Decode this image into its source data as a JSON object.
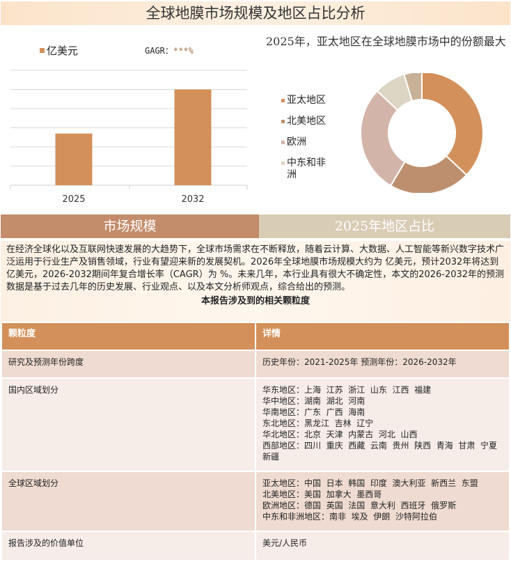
{
  "title": "全球地膜市场规模及地区占比分析",
  "bar_legend": "亿美元",
  "cagr_label": "GAGR：",
  "cagr_value": "***%",
  "pie_title": "2025年，亚太地区在全球地膜市场中的份额最大",
  "colors": {
    "accent": "#d4905a",
    "north_america": "#be8f6e",
    "europe": "#d3b4a8",
    "mea": "#ddd5c4",
    "other": "#c8b196"
  },
  "chart_data": [
    {
      "type": "bar",
      "categories": [
        "2025",
        "2032"
      ],
      "values": [
        2.7,
        5.0
      ],
      "ylim": [
        0,
        6
      ],
      "grid": true,
      "series": [
        {
          "name": "亿美元",
          "values": [
            2.7,
            5.0
          ]
        }
      ]
    },
    {
      "type": "pie",
      "donut": true,
      "labels": [
        "亚太地区",
        "北美地区",
        "欧洲",
        "中东和非洲",
        ""
      ],
      "values": [
        37,
        21.5,
        28.5,
        8.3,
        4.7
      ],
      "colors": [
        "#d4905a",
        "#be8f6e",
        "#d3b4a8",
        "#ddd5c4",
        "#c8b196"
      ],
      "legend": "left"
    }
  ],
  "sections": {
    "left": "市场规模",
    "right": "2025年地区占比"
  },
  "paragraph": "在经济全球化以及互联网快速发展的大趋势下，全球市场需求在不断释放，随着云计算、大数据、人工智能等新兴数字技术广泛运用于行业生产及销售领域，行业有望迎来新的发展契机。2026年全球地膜市场规模大约为 亿美元，预计2032年将达到 亿美元，2026-2032期间年复合增长率（CAGR）为 %。未来几年，本行业具有很大不确定性，本文的2026-2032年的预测数据是基于过去几年的历史发展、行业观点、以及本文分析师观点，综合给出的预测。",
  "table": {
    "caption": "本报告涉及到的相关颗粒度",
    "headers": [
      "颗粒度",
      "详情"
    ],
    "rows": [
      {
        "k": "研究及预测年份跨度",
        "v": [
          "历史年份：2021-2025年 预测年份：2026-2032年"
        ]
      },
      {
        "k": "国内区域划分",
        "v": [
          "华东地区：上海  江苏  浙江  山东  江西  福建",
          "华中地区：湖南  湖北  河南",
          "华南地区：广东  广西  海南",
          "东北地区：黑龙江  吉林  辽宁",
          "华北地区：北京  天津  内蒙古  河北  山西",
          "西部地区：四川  重庆  西藏  云南  贵州  陕西  青海  甘肃  宁夏  新疆"
        ]
      },
      {
        "k": "全球区域划分",
        "v": [
          "亚太地区：中国  日本  韩国  印度  澳大利亚  新西兰  东盟",
          "北美地区：美国  加拿大  墨西哥",
          "欧洲地区：德国  英国  法国  意大利  西班牙  俄罗斯",
          "中东和非洲地区：南非  埃及  伊朗  沙特阿拉伯"
        ]
      },
      {
        "k": "报告涉及的价值单位",
        "v": [
          "美元/人民币"
        ]
      }
    ]
  }
}
